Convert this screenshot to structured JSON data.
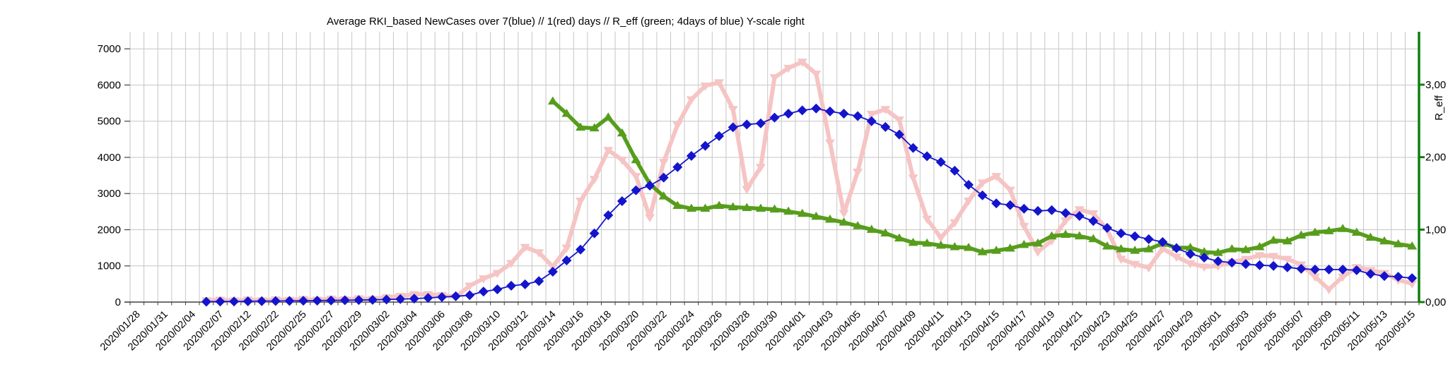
{
  "title": "Average RKI_based NewCases over 7(blue) // 1(red) days //  R_eff (green; 4days of blue) Y-scale right",
  "axes": {
    "left": {
      "ticks": [
        "0",
        "1000",
        "2000",
        "3000",
        "4000",
        "5000",
        "6000",
        "7000"
      ],
      "tick_values": [
        0,
        1000,
        2000,
        3000,
        4000,
        5000,
        6000,
        7000
      ],
      "max": 7000
    },
    "right": {
      "label": "R_eff",
      "ticks": [
        "0,00",
        "1,00",
        "2,00",
        "3,00"
      ],
      "tick_values": [
        0,
        1,
        2,
        3
      ],
      "axis_color": "#0f7f0f"
    },
    "x": {
      "first_label": "2020/01/28",
      "last_label": "2020/05/15"
    }
  },
  "colors": {
    "grid": "#c6c6c6",
    "axis": "#404040",
    "background": "#ffffff",
    "blue_series": "#1414cc",
    "pink_series": "#f6c4c4",
    "green_series": "#579d1c",
    "right_axis_green": "#0f7f0f"
  },
  "chart_data": {
    "type": "line",
    "title": "Average RKI_based NewCases over 7(blue) // 1(red) days //  R_eff (green; 4days of blue) Y-scale right",
    "grid": true,
    "legend": "none",
    "ylim_left": [
      0,
      7000
    ],
    "ylim_right": [
      0,
      3.5
    ],
    "categories": [
      "2020/01/28",
      "",
      "2020/01/31",
      "",
      "2020/02/04",
      "",
      "2020/02/07",
      "",
      "2020/02/12",
      "",
      "2020/02/22",
      "",
      "2020/02/25",
      "",
      "2020/02/27",
      "",
      "2020/02/29",
      "",
      "2020/03/02",
      "",
      "2020/03/04",
      "",
      "2020/03/06",
      "",
      "2020/03/08",
      "",
      "2020/03/10",
      "",
      "2020/03/12",
      "",
      "2020/03/14",
      "",
      "2020/03/16",
      "",
      "2020/03/18",
      "",
      "2020/03/20",
      "",
      "2020/03/22",
      "",
      "2020/03/24",
      "",
      "2020/03/26",
      "",
      "2020/03/28",
      "",
      "2020/03/30",
      "",
      "2020/04/01",
      "",
      "2020/04/03",
      "",
      "2020/04/05",
      "",
      "2020/04/07",
      "",
      "2020/04/09",
      "",
      "2020/04/11",
      "",
      "2020/04/13",
      "",
      "2020/04/15",
      "",
      "2020/04/17",
      "",
      "2020/04/19",
      "",
      "2020/04/21",
      "",
      "2020/04/23",
      "",
      "2020/04/25",
      "",
      "2020/04/27",
      "",
      "2020/04/29",
      "",
      "2020/05/01",
      "",
      "2020/05/03",
      "",
      "2020/05/05",
      "",
      "2020/05/07",
      "",
      "2020/05/09",
      "",
      "2020/05/11",
      "",
      "2020/05/13",
      "",
      "2020/05/15"
    ],
    "series": [
      {
        "name": "NewCases 1-day average (red/pink)",
        "axis": "left",
        "color": "#f6c4c4",
        "marker": "triangle-down",
        "line_width": 6,
        "values": [
          null,
          null,
          null,
          null,
          null,
          45,
          60,
          40,
          65,
          45,
          70,
          55,
          80,
          60,
          90,
          70,
          100,
          80,
          130,
          165,
          215,
          215,
          190,
          140,
          450,
          650,
          800,
          1075,
          1520,
          1370,
          975,
          1500,
          2800,
          3400,
          4200,
          3930,
          3480,
          2340,
          3870,
          4900,
          5600,
          5980,
          6070,
          5330,
          3120,
          3730,
          6210,
          6470,
          6640,
          6310,
          4410,
          2460,
          3600,
          5200,
          5330,
          5040,
          3440,
          2300,
          1780,
          2200,
          2800,
          3300,
          3480,
          3100,
          2100,
          1390,
          1700,
          2250,
          2560,
          2450,
          2000,
          1190,
          1050,
          950,
          1480,
          1250,
          1070,
          975,
          1000,
          1100,
          1190,
          1290,
          1270,
          1190,
          1035,
          700,
          350,
          700,
          960,
          880,
          800,
          610,
          510
        ]
      },
      {
        "name": "R_eff (green; 4days of blue, right Y-scale)",
        "axis": "right",
        "color": "#579d1c",
        "marker": "triangle-up",
        "line_width": 5.5,
        "values": [
          null,
          null,
          null,
          null,
          null,
          null,
          null,
          null,
          null,
          null,
          null,
          null,
          null,
          null,
          null,
          null,
          null,
          null,
          null,
          null,
          null,
          null,
          null,
          null,
          null,
          null,
          null,
          null,
          null,
          null,
          2.77,
          2.6,
          2.41,
          2.4,
          2.55,
          2.33,
          1.96,
          1.63,
          1.46,
          1.33,
          1.29,
          1.29,
          1.33,
          1.31,
          1.3,
          1.29,
          1.28,
          1.25,
          1.22,
          1.18,
          1.14,
          1.1,
          1.05,
          1.0,
          0.95,
          0.88,
          0.82,
          0.81,
          0.78,
          0.76,
          0.75,
          0.69,
          0.71,
          0.74,
          0.79,
          0.81,
          0.91,
          0.93,
          0.91,
          0.87,
          0.77,
          0.73,
          0.71,
          0.73,
          0.81,
          0.75,
          0.75,
          0.69,
          0.68,
          0.73,
          0.72,
          0.76,
          0.85,
          0.84,
          0.92,
          0.96,
          0.98,
          1.01,
          0.96,
          0.89,
          0.84,
          0.8,
          0.77
        ]
      },
      {
        "name": "NewCases 7-day average (blue)",
        "axis": "left",
        "color": "#1414cc",
        "marker": "diamond",
        "line_width": 1.8,
        "values": [
          null,
          null,
          null,
          null,
          null,
          10,
          15,
          18,
          22,
          25,
          30,
          32,
          36,
          40,
          45,
          50,
          55,
          62,
          70,
          82,
          95,
          115,
          140,
          160,
          190,
          290,
          350,
          450,
          490,
          580,
          840,
          1150,
          1450,
          1900,
          2400,
          2790,
          3090,
          3220,
          3440,
          3730,
          4040,
          4320,
          4590,
          4830,
          4910,
          4940,
          5100,
          5210,
          5300,
          5350,
          5270,
          5210,
          5140,
          5000,
          4840,
          4630,
          4260,
          4030,
          3870,
          3630,
          3240,
          2950,
          2730,
          2680,
          2580,
          2520,
          2540,
          2460,
          2380,
          2240,
          2050,
          1900,
          1820,
          1740,
          1660,
          1490,
          1330,
          1230,
          1130,
          1090,
          1050,
          1020,
          1000,
          960,
          920,
          900,
          900,
          900,
          880,
          780,
          720,
          700,
          660
        ]
      }
    ]
  }
}
